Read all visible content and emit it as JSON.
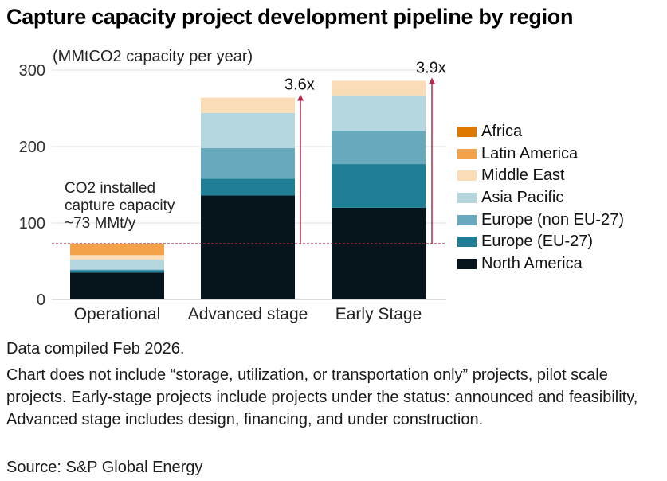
{
  "title": "Capture capacity project development pipeline by region",
  "chart_data": {
    "type": "bar",
    "stacked": true,
    "unit_label": "(MMtCO2 capacity per year)",
    "categories": [
      "Operational",
      "Advanced stage",
      "Early Stage"
    ],
    "ylim": [
      0,
      300
    ],
    "yticks": [
      0,
      100,
      200,
      300
    ],
    "grid": true,
    "legend_position": "right",
    "series": [
      {
        "name": "North America",
        "color": "#06151c",
        "values": [
          35,
          136,
          120
        ]
      },
      {
        "name": "Europe (EU-27)",
        "color": "#1f7d96",
        "values": [
          3,
          22,
          57
        ]
      },
      {
        "name": "Europe (non EU-27)",
        "color": "#69a9bd",
        "values": [
          1,
          40,
          44
        ]
      },
      {
        "name": "Asia Pacific",
        "color": "#b4d6df",
        "values": [
          13,
          46,
          46
        ]
      },
      {
        "name": "Middle East",
        "color": "#fadcb6",
        "values": [
          6,
          20,
          19
        ]
      },
      {
        "name": "Latin America",
        "color": "#f3a24a",
        "values": [
          15,
          0,
          0
        ]
      },
      {
        "name": "Africa",
        "color": "#dd7800",
        "values": [
          0,
          0,
          0
        ]
      }
    ],
    "reference_line": {
      "value": 73,
      "color": "#b5294e"
    },
    "reference_annotation": [
      "CO2 installed",
      "capture capacity",
      "~73 MMt/y"
    ],
    "multipliers": [
      {
        "category": "Advanced stage",
        "label": "3.6x"
      },
      {
        "category": "Early Stage",
        "label": "3.9x"
      }
    ]
  },
  "notes": {
    "date": "Data compiled Feb 2026.",
    "body": "Chart does not include “storage, utilization,  or transportation only” projects, pilot scale projects. Early-stage projects include projects under the status: announced and feasibility, Advanced stage includes design, financing, and under construction.",
    "source": "Source: S&P Global Energy"
  }
}
